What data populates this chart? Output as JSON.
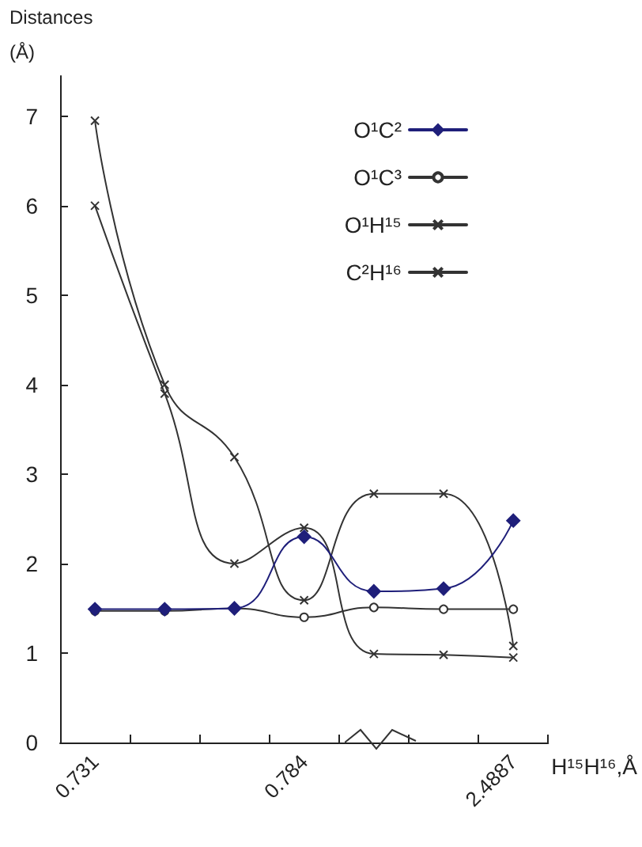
{
  "chart_data": {
    "type": "line",
    "ylabel": "Distances\n(Å)",
    "xlabel": "H¹⁵H¹⁶,Å",
    "categories": [
      "0.731",
      null,
      null,
      "0.784",
      null,
      null,
      "2.4887"
    ],
    "series": [
      {
        "name": "O¹C²",
        "color": "#1f1f7a",
        "marker": "diamond",
        "values": [
          1.49,
          1.49,
          1.5,
          2.3,
          1.69,
          1.72,
          2.48
        ]
      },
      {
        "name": "O¹C³",
        "color": "#333333",
        "marker": "circle",
        "values": [
          1.47,
          1.47,
          1.5,
          1.4,
          1.51,
          1.49,
          1.49
        ]
      },
      {
        "name": "O¹H¹⁵",
        "color": "#333333",
        "marker": "cross",
        "values": [
          6.0,
          3.9,
          2.0,
          2.4,
          0.99,
          0.98,
          0.95
        ]
      },
      {
        "name": "C²H¹⁶",
        "color": "#333333",
        "marker": "cross",
        "values": [
          6.95,
          4.0,
          3.19,
          1.59,
          2.78,
          2.78,
          1.08
        ]
      }
    ],
    "ylim": [
      0,
      7.45
    ],
    "yticks": [
      0,
      1,
      2,
      3,
      4,
      5,
      6,
      7
    ],
    "grid": false,
    "legend": "top right",
    "line_style": "solid"
  }
}
